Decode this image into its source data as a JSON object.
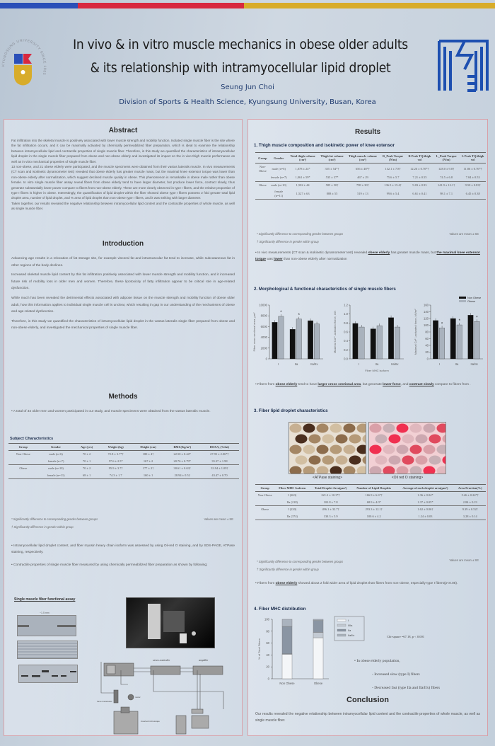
{
  "colors": {
    "blue": "#2a4fb8",
    "red": "#d8283f",
    "yellow": "#d8ac2a",
    "logo_blue": "#1d4fb0",
    "marker": "#c0203a"
  },
  "header": {
    "title_line1": "In vivo & in vitro muscle mechanics in obese older adults",
    "title_line2": "& its relationship with intramyocellular lipid droplet",
    "author": "Seung Jun Choi",
    "affiliation": "Division of Sports & Health Science, Kyungsung University, Busan, Korea",
    "left_logo_text": "KYUNGSUNG UNIVERSITY SINCE 1955",
    "left_logo_icon": "university-seal-icon",
    "right_logo_icon": "institution-logo-icon"
  },
  "abstract": {
    "title": "Abstract",
    "paragraphs": [
      "Fat infiltration into the skeletal muscle is positively associated with lower muscle strength and mobility function. Isolated single muscle fiber is the site where the fat infiltration occurs, and it can be maximally activated by chemically permeabilized fiber preparation, which is ideal to examine the relationship between intramyocellular lipid and contractile properties of single muscle fiber. Therefore, in this study we quantified the characteristics of intramyocellular lipid droplet in the single muscle fiber prepared from obese and non-obese elderly and investigated its impact on the in vivo thigh muscle performance as well as in vitro mechanical properties of single muscle fiber.",
      "13 non-obese, and 21 obese elderly were participated, and the muscle specimens were obtained from their vastus lateralis muscle. In vivo measurements (CT scan and isokinetic dynamometer test) revealed that obese elderly has greater muscle mass, but the maximal knee extensor torque was lower than non-obese elderly after normalization, which suggest declined muscle quality in obese. This phenomenon is remarkable in obese male rather than obese female. In vitro single muscle fiber assay reveal fibers from obese elderly tend to have larger diameter, but produce lower force, contract slowly, thus generate substantially lower power compare to fibers from non-obese elderly. These are more clearly observed in type I fibers, and the relative proportion of type I fibers is higher in obese. Interestingly, the quantification of lipid droplet within the fiber showed obese type I fibers possess 2 fold greater total lipid droplet area, number of lipid droplet, and % area of lipid droplet than non-obese type I fibers, and it was striking with larger diameter.",
      "Taken together, our results revealed the negative relationship between intramyocellular lipid content and the contractile properties of whole muscle, as well as single muscle fiber."
    ]
  },
  "introduction": {
    "title": "Introduction",
    "paragraphs": [
      "Advancing age results in a relocation of fat storage site, for example visceral fat and intramuscular fat tend to increase, while subcutaneous fat in other regions of the body declines.",
      "Increased skeletal muscle lipid content by this fat infiltration positively associated with lower muscle strength and mobility function, and it increased future risk of mobility loss in older men and women. Therefore, these lipotoxicity of fatty infiltration appear to be critical role in age-related dysfunction.",
      "While much has been revealed the detrimental effects associated with adipose tissue on the muscle strength and mobility function of obese older adult, how this information applies to individual single muscle cell is unclear, which resulting in gap in our understanding of the mechanisms of obese and age-related dysfunction.",
      "Therefore, in this study we quantified the characteristics of intramyocellular lipid droplet in the vastus lateralis single fiber prepared from obese and non-obese elderly, and investigated the mechanical properties of single muscle fiber."
    ]
  },
  "methods": {
    "title": "Methods",
    "bullet1": "A total of 34 older men and women participated in our study, and muscle specimens were obtained from the vastus lateralis muscle.",
    "subject_table": {
      "caption": "Subject Characteristics",
      "headers": [
        "Group",
        "Gender",
        "Age (yrs)",
        "Weight (kg)",
        "Height (cm)",
        "BMI (Kg/m²)",
        "DEXA, (%fat)"
      ],
      "rows": [
        [
          "Non-Obese",
          "male (n=6)",
          "70 ± 2",
          "72.8 ± 3.7*†",
          "180 ± 4†",
          "22.50 ± 0.44*",
          "27.95 ± 2.06*†"
        ],
        [
          "",
          "female (n=7)",
          "70 ± 1",
          "57.6 ± 2.5*",
          "167 ± 2",
          "20.76 ± 0.79*",
          "35.37 ± 1.98"
        ],
        [
          "Obese",
          "male (n=10)",
          "70 ± 2",
          "95.9 ± 3.7†",
          "177 ± 2†",
          "30.61 ± 0.63†",
          "33.94 ± 1.09†"
        ],
        [
          "",
          "female (n=11)",
          "68 ± 1",
          "74.3 ± 1.7",
          "160 ± 1",
          "28.94 ± 0.52",
          "43.47 ± 0.70"
        ]
      ]
    },
    "footnote1": "* Significantly difference to corresponding gender between groups",
    "footnote2": "† Significantly difference in gender within group",
    "values_note": "Values are mean ± SE",
    "bullet2": "Intramyocellular lipid droplet content, and fiber myosin heavy chain isoform was assessed by using Oil-red O staining, and by SDS-PAGE, ATPase staining, respectively.",
    "bullet3": "Contractile properties of single muscle fiber measured by using chemically permeabilized fiber preparation as shown by following;",
    "assay_title": "Single muscle fiber functional assay",
    "scale_label": "~1.5 mm",
    "diagram_labels": {
      "servo": "servo-controller",
      "amp": "amplifier",
      "force": "force transducer",
      "motor": "motor",
      "microscope": "inverted microscope"
    }
  },
  "results": {
    "title": "Results",
    "s1_title": "1. Thigh muscle composition and isokinetic power of knee extensor",
    "thigh_table": {
      "headers": [
        "Group",
        "Gender",
        "Total thigh volume (cm³)",
        "Thigh fat volume (cm³)",
        "Thigh muscle volume (cm³)",
        "R_Peak Torque (N/m)",
        "R Peak TQ/thigh vol",
        "L_Peak Torque (N/m)",
        "L Peak TQ/thigh vol"
      ],
      "rows": [
        [
          "Non-Obese",
          "male (n=6)",
          "1,078 ± 24*",
          "355 ± 54*†",
          "656 ± 48*†",
          "132.1 ± 7.8†",
          "12.26 ± 0.70*†",
          "128.0 ± 9.0†",
          "11.86 ± 0.76*†"
        ],
        [
          "",
          "female (n=7)",
          "1,061 ± 59*",
          "535 ± 37*",
          "467 ± 29",
          "75.6 ± 5.7",
          "7.21 ± 0.55",
          "74.5 ± 6.8",
          "7.04 ± 0.53"
        ],
        [
          "Obese",
          "male (n=10)",
          "1,502 ± 44",
          "585 ± 50†",
          "798 ± 30†",
          "136.5 ± 15.4†",
          "9.03 ± 0.93",
          "141.9 ± 12.1†",
          "9.50 ± 0.83†"
        ],
        [
          "",
          "female (n=11)",
          "1,527 ± 63",
          "888 ± 55",
          "519 ± 13",
          "99.6 ± 5.4",
          "6.61 ± 0.41",
          "98.1 ± 7.1",
          "6.45 ± 0.38"
        ]
      ]
    },
    "footnote1": "* Significantly difference to corresponding gender between groups",
    "footnote2": "† Significantly difference in gender within group",
    "values_note": "Values are mean ± SE",
    "s1_bullet": {
      "a": "In vivo measurements (CT scan & isokinetic dynamometer test) revealed ",
      "b": "obese elderly",
      "c": " has greater muscle mass, but ",
      "d": "the maximal knee extensor torque",
      "e": " was ",
      "f": "lower",
      "g": " than non-obese elderly after normalization"
    },
    "s2_title": "2. Morphological & functional characteristics of single muscle fibers",
    "s2_bullet": {
      "a": "Fibers from ",
      "b": "obese elderly",
      "c": " tend to have ",
      "d": "larger cross sectional area",
      "e": ", but generate ",
      "f": "lower force",
      "g": ", and ",
      "h": "contract slowly",
      "i": " compare to fibers from ."
    },
    "s3_title": "3. Fiber lipid droplet characteristics",
    "img1_caption": "<ATPase staining>",
    "img2_caption": "<Oil red O staining>",
    "lipid_table": {
      "headers": [
        "Group",
        "Fiber MHC Isoform",
        "Total Droplet Area(µm²)",
        "Number of Lipid Droplets",
        "Average of each droplet area(µm²)",
        "Area Fraction(%)"
      ],
      "rows": [
        [
          "Non-Obese",
          "I (263)",
          "221.2 ± 10.3*†",
          "166.9 ± 6.6*†",
          "1.36 ± 0.04*",
          "5.46 ± 0.24*†"
        ],
        [
          "",
          "IIa (218)",
          "102.8 ± 7.8",
          "68.9 ± 4.0*",
          "1.37 ± 0.05*",
          "2.84 ± 0.19"
        ],
        [
          "Obese",
          "I (220)",
          "496.1 ± 32.7†",
          "293.3 ± 12.1†",
          "1.62 ± 0.06†",
          "9.39 ± 0.52†"
        ],
        [
          "",
          "IIa (374)",
          "130.3 ± 5.9",
          "100.6 ± 4.2",
          "1.24 ± 0.03",
          "3.28 ± 0.14"
        ]
      ]
    },
    "s3_bullet": {
      "a": "Fibers from ",
      "b": "obese elderly",
      "c": " showed about 2 fold wider area of lipid droplet than fibers from non-obese, especially type I fibers(p<0.05)."
    },
    "s4_title": "4. Fiber MHC distribution",
    "chi_square": "Chi-square =67.18, p < 0.001",
    "s4_bullet": "In obese elderly population,",
    "s4_sub1": "Increased slow (type I) fibers",
    "s4_sub2": "Decreased fast (type IIa and IIa/IIx) fibers"
  },
  "conclusion": {
    "title": "Conclusion",
    "text": "Our results revealed the negative relationship between intramyocellular lipid content and the contractile properties of whole muscle, as well as single muscle fiber."
  },
  "chart_data": [
    {
      "type": "bar",
      "ylabel": "Fiber cross sectional area, µm²",
      "categories": [
        "I",
        "IIa",
        "IIa/IIx"
      ],
      "ylim": [
        0,
        10000
      ],
      "yticks": [
        0,
        2000,
        4000,
        6000,
        8000,
        10000
      ],
      "series": [
        {
          "name": "Non Obese",
          "values": [
            6800,
            5500,
            7100
          ]
        },
        {
          "name": "Obese",
          "values": [
            7900,
            7400,
            6500
          ]
        }
      ],
      "significant": [
        true,
        true,
        false
      ]
    },
    {
      "type": "bar",
      "ylabel": "Maximal Ca²⁺-activated force, mN",
      "xlabel": "Fiber MHC isoform",
      "categories": [
        "I",
        "IIa",
        "IIa/IIx"
      ],
      "ylim": [
        0,
        1.2
      ],
      "yticks": [
        "0.0",
        "0.2",
        "0.4",
        "0.6",
        "0.8",
        "1.0",
        "1.2"
      ],
      "series": [
        {
          "name": "Non Obese",
          "values": [
            0.79,
            0.67,
            0.92
          ]
        },
        {
          "name": "Obese",
          "values": [
            0.71,
            0.74,
            0.71
          ]
        }
      ],
      "significant": [
        false,
        false,
        false
      ]
    },
    {
      "type": "bar",
      "ylabel": "Maximal Ca²⁺-activated force, kN/m²",
      "categories": [
        "I",
        "IIa",
        "IIa/IIx"
      ],
      "ylim": [
        0,
        160
      ],
      "yticks": [
        0,
        20,
        40,
        60,
        80,
        100,
        120,
        140,
        160
      ],
      "series": [
        {
          "name": "Non Obese",
          "values": [
            114,
            120,
            130
          ]
        },
        {
          "name": "Obese",
          "values": [
            92,
            101,
            111
          ]
        }
      ],
      "significant": [
        true,
        true,
        true
      ],
      "legend": "top-right"
    },
    {
      "type": "stacked-bar",
      "ylabel": "% of Total Fibers",
      "categories": [
        "Non Obese",
        "Obese"
      ],
      "ylim": [
        0,
        100
      ],
      "yticks": [
        0,
        20,
        40,
        60,
        80,
        100
      ],
      "series": [
        {
          "name": "I",
          "values": [
            41,
            69
          ]
        },
        {
          "name": "I/IIa",
          "values": [
            1,
            9
          ]
        },
        {
          "name": "IIa",
          "values": [
            46,
            20
          ]
        },
        {
          "name": "IIa/IIx",
          "values": [
            12,
            2
          ]
        }
      ],
      "legend": "right"
    }
  ]
}
